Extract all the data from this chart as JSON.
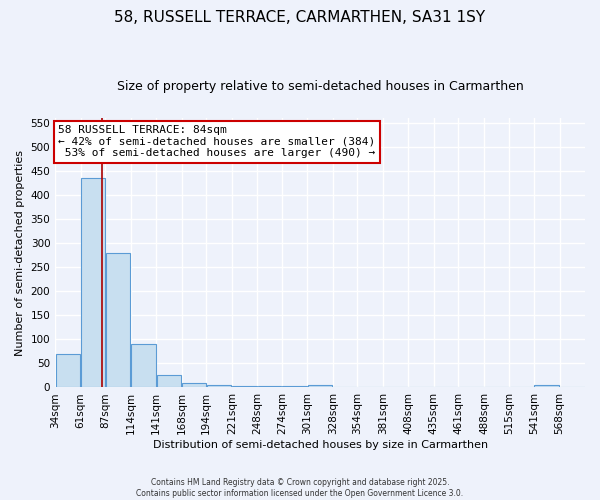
{
  "title": "58, RUSSELL TERRACE, CARMARTHEN, SA31 1SY",
  "subtitle": "Size of property relative to semi-detached houses in Carmarthen",
  "xlabel": "Distribution of semi-detached houses by size in Carmarthen",
  "ylabel": "Number of semi-detached properties",
  "bin_labels": [
    "34sqm",
    "61sqm",
    "87sqm",
    "114sqm",
    "141sqm",
    "168sqm",
    "194sqm",
    "221sqm",
    "248sqm",
    "274sqm",
    "301sqm",
    "328sqm",
    "354sqm",
    "381sqm",
    "408sqm",
    "435sqm",
    "461sqm",
    "488sqm",
    "515sqm",
    "541sqm",
    "568sqm"
  ],
  "bin_edges": [
    34,
    61,
    87,
    114,
    141,
    168,
    194,
    221,
    248,
    274,
    301,
    328,
    354,
    381,
    408,
    435,
    461,
    488,
    515,
    541,
    568,
    595
  ],
  "bar_heights": [
    70,
    435,
    280,
    90,
    25,
    10,
    5,
    3,
    3,
    3,
    5,
    0,
    0,
    0,
    0,
    0,
    0,
    0,
    0,
    5,
    0
  ],
  "bar_color": "#c8dff0",
  "bar_edge_color": "#5b9bd5",
  "property_size": 84,
  "pct_smaller": 42,
  "pct_smaller_count": 384,
  "pct_larger": 53,
  "pct_larger_count": 490,
  "vline_color": "#aa0000",
  "annotation_box_color": "#cc0000",
  "ylim": [
    0,
    560
  ],
  "yticks": [
    0,
    50,
    100,
    150,
    200,
    250,
    300,
    350,
    400,
    450,
    500,
    550
  ],
  "footer": "Contains HM Land Registry data © Crown copyright and database right 2025.\nContains public sector information licensed under the Open Government Licence 3.0.",
  "background_color": "#eef2fb",
  "grid_color": "#ffffff",
  "title_fontsize": 11,
  "subtitle_fontsize": 9,
  "axis_fontsize": 8,
  "tick_fontsize": 7.5
}
